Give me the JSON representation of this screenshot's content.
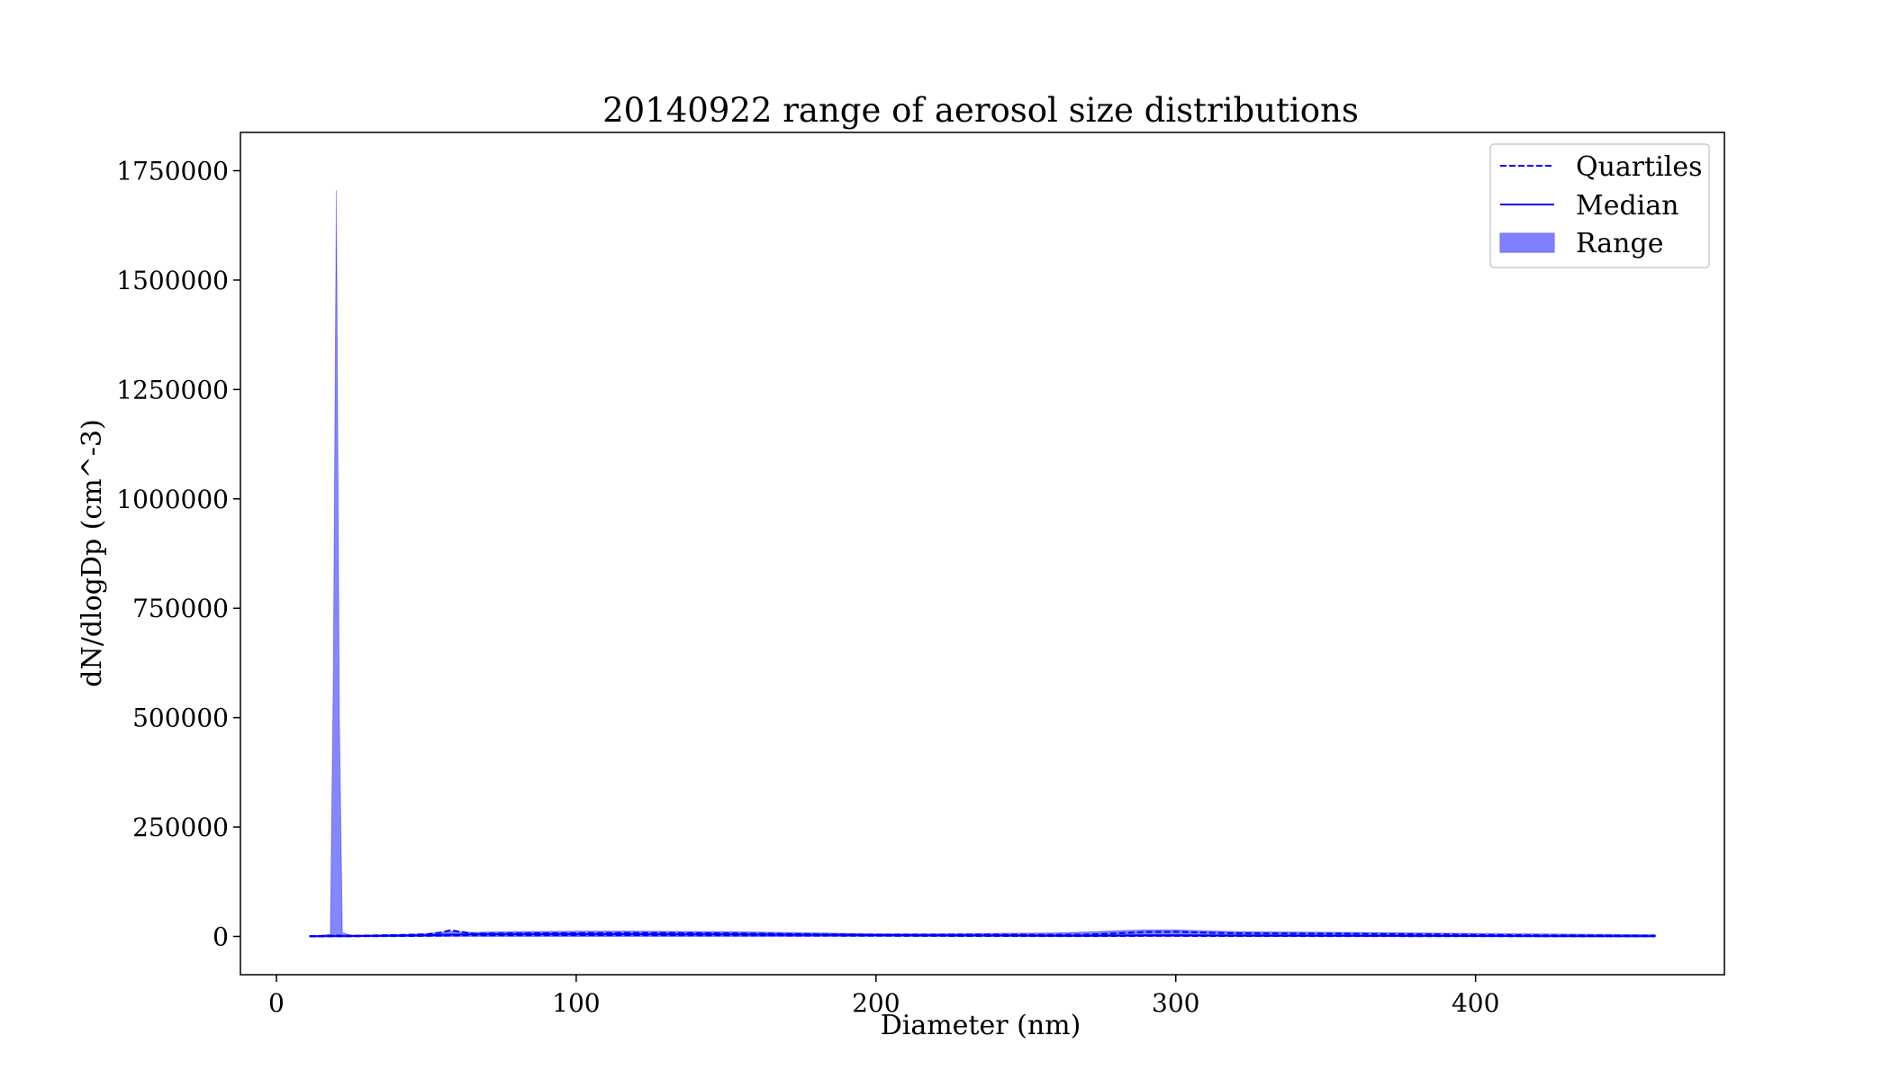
{
  "chart_data": {
    "type": "area",
    "title": "20140922 range of aerosol size distributions",
    "xlabel": "Diameter (nm)",
    "ylabel": "dN/dlogDp (cm^-3)",
    "xlim": [
      -12,
      483
    ],
    "ylim": [
      -87500,
      1837500
    ],
    "xticks": [
      0,
      100,
      200,
      300,
      400
    ],
    "yticks": [
      0,
      250000,
      500000,
      750000,
      1000000,
      1250000,
      1500000,
      1750000
    ],
    "legend_position": "top-right",
    "grid": false,
    "colors": {
      "series": "#0000ff",
      "fill": "#8080ff",
      "frame": "#000000"
    },
    "legend": [
      {
        "label": "Quartiles",
        "style": "dashed"
      },
      {
        "label": "Median",
        "style": "solid"
      },
      {
        "label": "Range",
        "style": "fill"
      }
    ],
    "x": [
      11,
      15,
      18,
      19,
      20,
      21,
      22,
      25,
      30,
      40,
      50,
      55,
      58,
      62,
      66,
      70,
      80,
      100,
      120,
      150,
      180,
      200,
      220,
      240,
      260,
      270,
      280,
      290,
      300,
      310,
      320,
      340,
      360,
      380,
      400,
      420,
      440,
      460
    ],
    "range_min": [
      0,
      0,
      0,
      0,
      0,
      0,
      0,
      0,
      0,
      0,
      0,
      0,
      0,
      0,
      0,
      0,
      0,
      0,
      0,
      0,
      0,
      0,
      0,
      0,
      0,
      0,
      0,
      0,
      0,
      0,
      0,
      0,
      0,
      0,
      0,
      0,
      0,
      0
    ],
    "range_max": [
      1500,
      2500,
      5000,
      600000,
      1705000,
      500000,
      8000,
      3000,
      3000,
      4000,
      6000,
      9000,
      12000,
      10000,
      9000,
      10000,
      11000,
      12000,
      12000,
      11000,
      8000,
      6000,
      6000,
      7000,
      8000,
      10000,
      13000,
      15000,
      15000,
      13000,
      11000,
      10000,
      9000,
      8000,
      7000,
      6000,
      5000,
      4000
    ],
    "quartile_upper": [
      500,
      1000,
      1500,
      1800,
      2000,
      2000,
      1500,
      1500,
      2000,
      3000,
      5000,
      9000,
      14000,
      10000,
      6000,
      6500,
      7000,
      7500,
      8000,
      7000,
      5000,
      4000,
      4000,
      4000,
      3500,
      4000,
      7000,
      10000,
      10500,
      8500,
      7000,
      6500,
      6000,
      5000,
      3500,
      2500,
      2000,
      1500
    ],
    "median": [
      200,
      400,
      600,
      700,
      800,
      800,
      700,
      700,
      1000,
      1500,
      2500,
      3500,
      4000,
      4300,
      4500,
      4600,
      4800,
      5000,
      5000,
      4500,
      3500,
      3000,
      2500,
      2000,
      1500,
      1500,
      2000,
      2500,
      2500,
      2200,
      2000,
      1800,
      1500,
      1200,
      1000,
      800,
      600,
      400
    ],
    "quartile_lower": [
      50,
      100,
      200,
      250,
      300,
      300,
      250,
      300,
      500,
      800,
      1200,
      1800,
      2000,
      2200,
      2300,
      2300,
      2400,
      2500,
      2500,
      2200,
      1800,
      1500,
      1200,
      1000,
      800,
      800,
      1000,
      1200,
      1200,
      1100,
      1000,
      900,
      800,
      600,
      500,
      400,
      300,
      200
    ]
  }
}
